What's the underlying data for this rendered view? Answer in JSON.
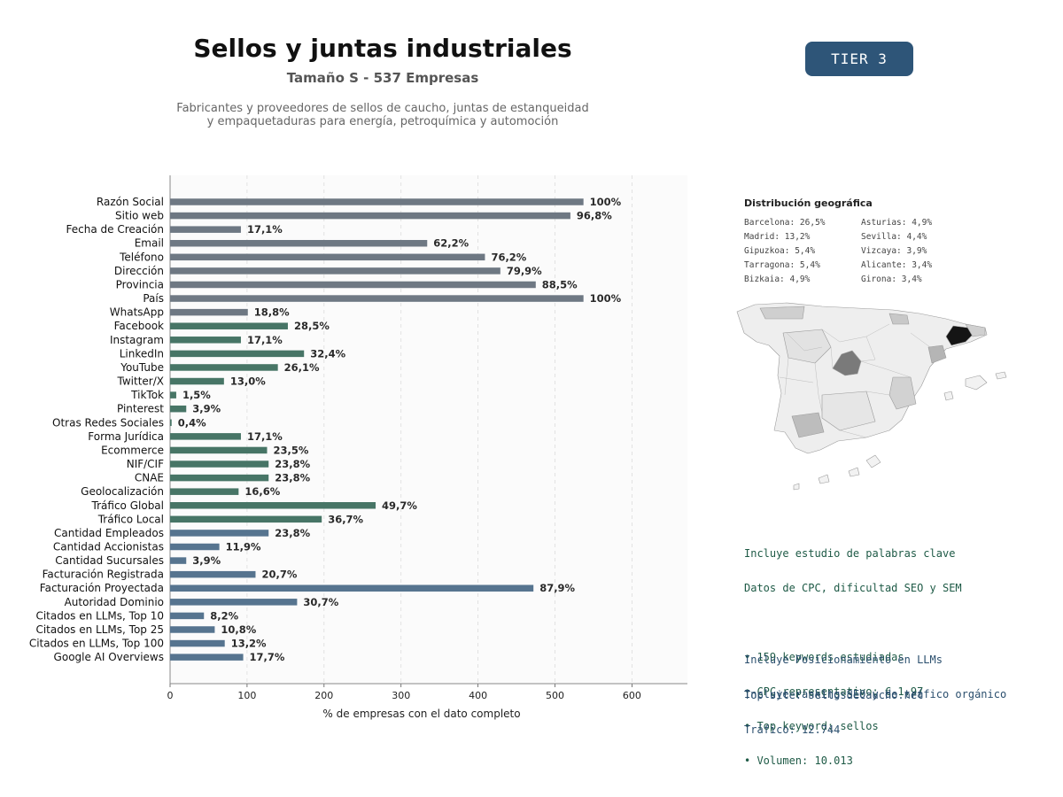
{
  "header": {
    "title": "Sellos y juntas industriales",
    "subtitle": "Tamaño S - 537 Empresas",
    "description_line1": "Fabricantes y proveedores de sellos de caucho, juntas de estanqueidad",
    "description_line2": "y empaquetaduras para energía, petroquímica y automoción",
    "tier_label": "TIER 3",
    "tier_color": "#2e5578"
  },
  "chart_data": {
    "type": "bar",
    "orientation": "horizontal",
    "categories": [
      "Razón Social",
      "Sitio web",
      "Fecha de Creación",
      "Email",
      "Teléfono",
      "Dirección",
      "Provincia",
      "País",
      "WhatsApp",
      "Facebook",
      "Instagram",
      "LinkedIn",
      "YouTube",
      "Twitter/X",
      "TikTok",
      "Pinterest",
      "Otras Redes Sociales",
      "Forma Jurídica",
      "Ecommerce",
      "NIF/CIF",
      "CNAE",
      "Geolocalización",
      "Tráfico Global",
      "Tráfico Local",
      "Cantidad Empleados",
      "Cantidad Accionistas",
      "Cantidad Sucursales",
      "Facturación Registrada",
      "Facturación Proyectada",
      "Autoridad Dominio",
      "Citados en LLMs, Top 10",
      "Citados en LLMs, Top 25",
      "Citados en LLMs, Top 100",
      "Google AI Overviews"
    ],
    "values": [
      537,
      520,
      92,
      334,
      409,
      429,
      475,
      537,
      101,
      153,
      92,
      174,
      140,
      70,
      8,
      21,
      2,
      92,
      126,
      128,
      128,
      89,
      267,
      197,
      128,
      64,
      21,
      111,
      472,
      165,
      44,
      58,
      71,
      95
    ],
    "labels": [
      "100%",
      "96,8%",
      "17,1%",
      "62,2%",
      "76,2%",
      "79,9%",
      "88,5%",
      "100%",
      "18,8%",
      "28,5%",
      "17,1%",
      "32,4%",
      "26,1%",
      "13,0%",
      "1,5%",
      "3,9%",
      "0,4%",
      "17,1%",
      "23,5%",
      "23,8%",
      "23,8%",
      "16,6%",
      "49,7%",
      "36,7%",
      "23,8%",
      "11,9%",
      "3,9%",
      "20,7%",
      "87,9%",
      "30,7%",
      "8,2%",
      "10,8%",
      "13,2%",
      "17,7%"
    ],
    "groups": [
      "gray",
      "gray",
      "gray",
      "gray",
      "gray",
      "gray",
      "gray",
      "gray",
      "gray",
      "green",
      "green",
      "green",
      "green",
      "green",
      "green",
      "green",
      "green",
      "green",
      "green",
      "green",
      "green",
      "green",
      "green",
      "green",
      "blue",
      "blue",
      "blue",
      "blue",
      "blue",
      "blue",
      "blue",
      "blue",
      "blue",
      "blue"
    ],
    "group_colors": {
      "gray": "#6e7883",
      "green": "#477566",
      "blue": "#56748f"
    },
    "xlabel": "% de empresas con el dato completo",
    "xlim": [
      0,
      672
    ],
    "xticks": [
      0,
      100,
      200,
      300,
      400,
      500,
      600
    ],
    "grid": "vertical dashed"
  },
  "geo": {
    "title": "Distribución geográfica",
    "items": [
      "Barcelona: 26,5%",
      "Asturias: 4,9%",
      "Madrid: 13,2%",
      "Sevilla: 4,4%",
      "Gipuzkoa: 5,4%",
      "Vizcaya: 3,9%",
      "Tarragona: 5,4%",
      "Alicante: 3,4%",
      "Bizkaia: 4,9%",
      "Girona: 3,4%"
    ]
  },
  "keywords": {
    "line1": "Incluye estudio de palabras clave",
    "line2": "Datos de CPC, dificultad SEO y SEM",
    "bullet1": "• 159 keywords estudiadas",
    "bullet2": "• CPC representativo: € 1.97",
    "bullet3": "• Top keyword: sellos",
    "bullet4": "• Volumen: 10.013"
  },
  "llm": {
    "line1": "Incluye Posicionamiento en LLMs",
    "line2": "Incluye ranking SEO y de tráfico orgánico"
  },
  "site": {
    "line1": "Top site: sellosdecaucho.net",
    "line2": "Tráfico: 12.744"
  }
}
